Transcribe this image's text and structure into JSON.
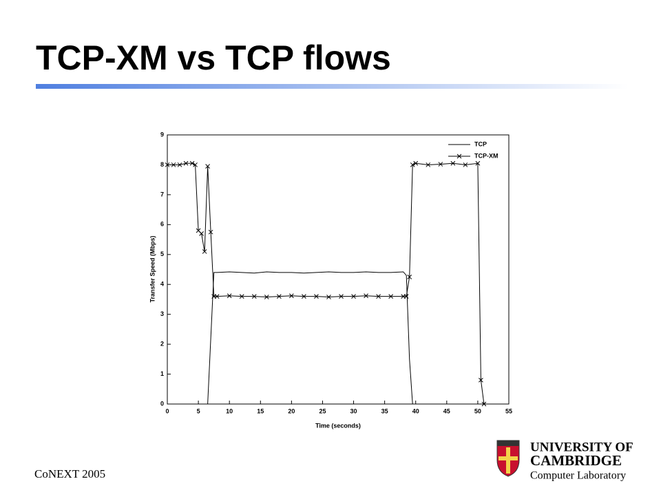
{
  "slide": {
    "title": "TCP-XM vs TCP flows",
    "footer": "CoNEXT 2005",
    "logo": {
      "line1": "UNIVERSITY OF",
      "line2": "CAMBRIDGE",
      "line3": "Computer Laboratory"
    }
  },
  "chart_data": {
    "type": "line",
    "x_label": "Time (seconds)",
    "y_label": "Transfer Speed (Mbps)",
    "x": [
      0,
      1,
      2,
      3,
      4,
      4.5,
      5,
      5.5,
      6,
      6.5,
      7,
      7.5,
      8,
      10,
      12,
      14,
      16,
      18,
      20,
      22,
      24,
      26,
      28,
      30,
      32,
      34,
      36,
      38,
      38.5,
      39,
      39.5,
      40,
      42,
      44,
      46,
      48,
      50,
      50.5,
      51
    ],
    "series": [
      {
        "name": "TCP",
        "color": "#000000",
        "marker": "none",
        "values": [
          0,
          0,
          0,
          0,
          0,
          0,
          0,
          0,
          0,
          0,
          2.2,
          4.4,
          4.4,
          4.42,
          4.4,
          4.38,
          4.42,
          4.4,
          4.4,
          4.38,
          4.4,
          4.42,
          4.4,
          4.4,
          4.42,
          4.4,
          4.4,
          4.42,
          4.3,
          1.5,
          0,
          0,
          0,
          0,
          0,
          0,
          0,
          0,
          0
        ]
      },
      {
        "name": "TCP-XM",
        "color": "#000000",
        "marker": "x",
        "values": [
          8,
          8,
          8,
          8.05,
          8.05,
          8,
          5.8,
          5.7,
          5.1,
          7.95,
          5.75,
          3.6,
          3.6,
          3.62,
          3.6,
          3.6,
          3.58,
          3.6,
          3.62,
          3.6,
          3.6,
          3.58,
          3.6,
          3.6,
          3.62,
          3.6,
          3.6,
          3.6,
          3.6,
          4.25,
          8,
          8.05,
          8,
          8.02,
          8.05,
          8,
          8.05,
          0.8,
          0
        ]
      }
    ],
    "xlim": [
      0,
      55
    ],
    "ylim": [
      0,
      9
    ],
    "xticks": [
      0,
      5,
      10,
      15,
      20,
      25,
      30,
      35,
      40,
      45,
      50,
      55
    ],
    "yticks": [
      0,
      1,
      2,
      3,
      4,
      5,
      6,
      7,
      8,
      9
    ],
    "legend": "top-right"
  }
}
